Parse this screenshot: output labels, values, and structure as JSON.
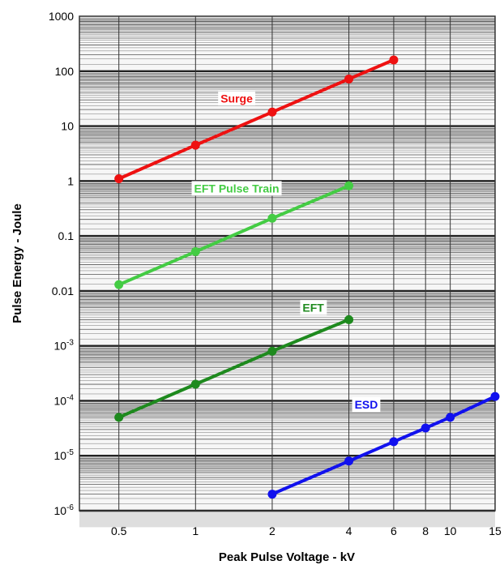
{
  "chart_data": {
    "type": "line",
    "xlabel": "Peak Pulse Voltage - kV",
    "ylabel": "Pulse Energy - Joule",
    "x_scale": "log",
    "y_scale": "log",
    "xlim": [
      0.35,
      15
    ],
    "ylim": [
      1e-06,
      1000
    ],
    "grid": true,
    "x_ticks": [
      {
        "value": 0.5,
        "label": "0.5"
      },
      {
        "value": 1,
        "label": "1"
      },
      {
        "value": 2,
        "label": "2"
      },
      {
        "value": 4,
        "label": "4"
      },
      {
        "value": 6,
        "label": "6"
      },
      {
        "value": 8,
        "label": "8"
      },
      {
        "value": 10,
        "label": "10"
      },
      {
        "value": 15,
        "label": "15"
      }
    ],
    "y_ticks": [
      {
        "value": 1000,
        "base": "1000",
        "exp": ""
      },
      {
        "value": 100,
        "base": "100",
        "exp": ""
      },
      {
        "value": 10,
        "base": "10",
        "exp": ""
      },
      {
        "value": 1,
        "base": "1",
        "exp": ""
      },
      {
        "value": 0.1,
        "base": "0.1",
        "exp": ""
      },
      {
        "value": 0.01,
        "base": "0.01",
        "exp": ""
      },
      {
        "value": 0.001,
        "base": "10",
        "exp": "-3"
      },
      {
        "value": 0.0001,
        "base": "10",
        "exp": "-4"
      },
      {
        "value": 1e-05,
        "base": "10",
        "exp": "-5"
      },
      {
        "value": 1e-06,
        "base": "10",
        "exp": "-6"
      }
    ],
    "series": [
      {
        "name": "Surge",
        "color": "#ee1111",
        "x": [
          0.5,
          1,
          2,
          4,
          6
        ],
        "y": [
          1.1,
          4.5,
          18,
          72,
          160
        ]
      },
      {
        "name": "EFT Pulse Train",
        "color": "#44cc44",
        "x": [
          0.5,
          1,
          2,
          4
        ],
        "y": [
          0.013,
          0.052,
          0.21,
          0.82
        ]
      },
      {
        "name": "EFT",
        "color": "#1e8a1e",
        "x": [
          0.5,
          1,
          2,
          4
        ],
        "y": [
          5e-05,
          0.0002,
          0.0008,
          0.003
        ]
      },
      {
        "name": "ESD",
        "color": "#1111ee",
        "x": [
          2,
          4,
          6,
          8,
          10,
          15
        ],
        "y": [
          2e-06,
          8e-06,
          1.8e-05,
          3.2e-05,
          5e-05,
          0.00012
        ]
      }
    ]
  }
}
